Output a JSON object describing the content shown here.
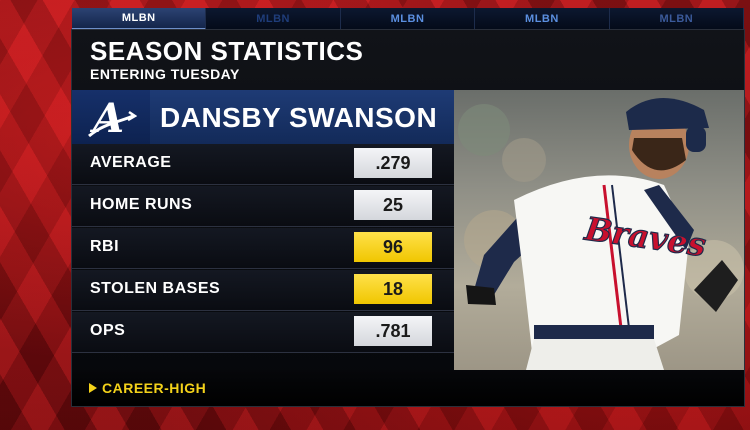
{
  "network_tabs": [
    "MLBN",
    "MLBN",
    "MLBN",
    "MLBN",
    "MLBN"
  ],
  "graphic": {
    "title": "SEASON STATISTICS",
    "subtitle": "ENTERING TUESDAY",
    "team_logo_letter": "A",
    "player_name": "DANSBY SWANSON",
    "jersey_text": "Braves",
    "highlight_color": "#f4d21a",
    "stats": [
      {
        "label": "AVERAGE",
        "value": ".279",
        "career_high": false
      },
      {
        "label": "HOME RUNS",
        "value": "25",
        "career_high": false
      },
      {
        "label": "RBI",
        "value": "96",
        "career_high": true
      },
      {
        "label": "STOLEN BASES",
        "value": "18",
        "career_high": true
      },
      {
        "label": "OPS",
        "value": ".781",
        "career_high": false
      }
    ],
    "legend": {
      "icon": "triangle-right-icon",
      "label": "CAREER-HIGH"
    }
  }
}
